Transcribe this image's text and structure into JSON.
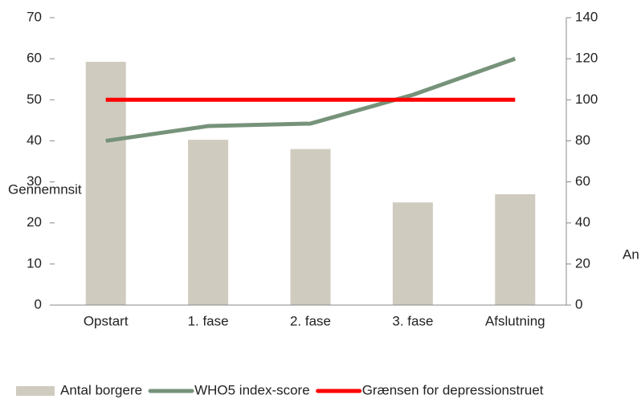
{
  "chart_data": {
    "type": "bar-line",
    "y_label": "Gennemnsit",
    "y2_label": "An",
    "categories": [
      "Opstart",
      "1. fase",
      "2. fase",
      "3. fase",
      "Afslutning"
    ],
    "series": [
      {
        "name": "Antal borgere",
        "type": "bar",
        "axis": "y2",
        "color": "#d0cbbf",
        "values": [
          118.5,
          80.5,
          76,
          50,
          54
        ]
      },
      {
        "name": "WHO5 index-score",
        "type": "line",
        "color": "#76937a",
        "values": [
          40,
          43.6,
          44.2,
          51.2,
          60
        ]
      },
      {
        "name": "Grænsen for depressionstruet",
        "type": "line",
        "color": "#ff0000",
        "values": [
          50,
          50,
          50,
          50,
          50
        ]
      }
    ],
    "ylim": [
      0,
      70
    ],
    "yticks": [
      0,
      10,
      20,
      30,
      40,
      50,
      60,
      70
    ],
    "y2lim": [
      0,
      140
    ],
    "y2ticks": [
      0,
      20,
      40,
      60,
      80,
      100,
      120,
      140
    ],
    "legend": "bottom"
  }
}
